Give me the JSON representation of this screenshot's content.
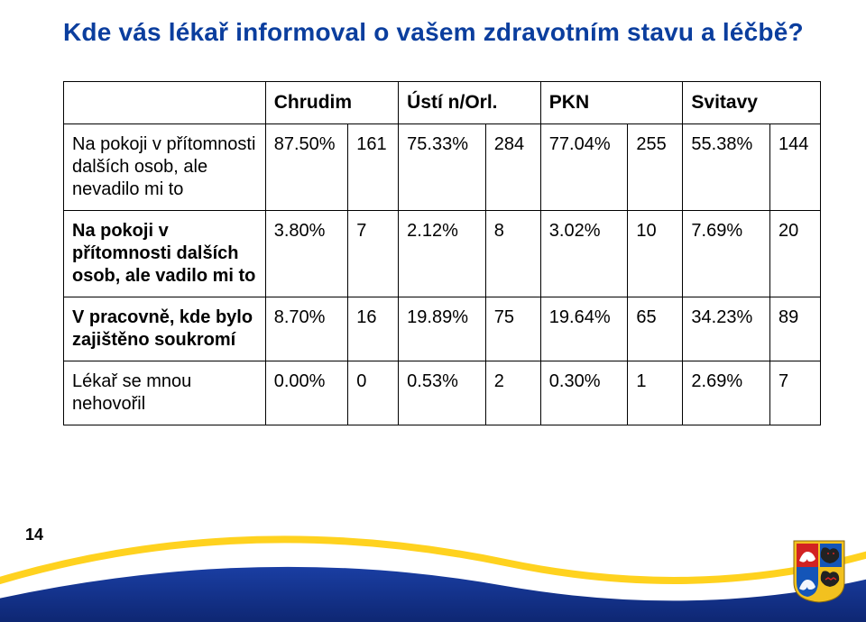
{
  "title": {
    "text": "Kde vás lékař informoval o vašem zdravotním stavu a léčbě?",
    "color": "#0b3e9e",
    "fontsize": 28
  },
  "page_number": "14",
  "table": {
    "header_top": [
      "",
      "Chrudim",
      "Ústí n/Orl.",
      "PKN",
      "Svitavy"
    ],
    "rows": [
      {
        "label": "Na pokoji v přítomnosti dalších osob, ale nevadilo mi to",
        "bold": false,
        "c": [
          "87.50%",
          "161",
          "75.33%",
          "284",
          "77.04%",
          "255",
          "55.38%",
          "144"
        ]
      },
      {
        "label": "Na pokoji v přítomnosti dalších osob, ale vadilo mi to",
        "bold": true,
        "c": [
          "3.80%",
          "7",
          "2.12%",
          "8",
          "3.02%",
          "10",
          "7.69%",
          "20"
        ]
      },
      {
        "label": "V pracovně, kde bylo zajištěno soukromí",
        "bold": true,
        "c": [
          "8.70%",
          "16",
          "19.89%",
          "75",
          "19.64%",
          "65",
          "34.23%",
          "89"
        ]
      },
      {
        "label": "Lékař se mnou nehovořil",
        "bold": false,
        "c": [
          "0.00%",
          "0",
          "0.53%",
          "2",
          "0.30%",
          "1",
          "2.69%",
          "7"
        ]
      }
    ],
    "border_color": "#000000",
    "cell_fontsize": 20,
    "header_fontsize": 21
  },
  "footer": {
    "blue_band": {
      "color_top": "#1a3ea3",
      "color_bottom": "#0a1f63",
      "height": 36
    },
    "yellow_stroke": {
      "color": "#ffd21f",
      "thickness": 8
    },
    "background": "#ffffff",
    "emblem": {
      "name": "czech-coat-of-arms",
      "shield_blue": "#1455b8",
      "shield_red": "#d22222",
      "gold": "#f2c11f",
      "white": "#ffffff",
      "black": "#222222"
    }
  }
}
